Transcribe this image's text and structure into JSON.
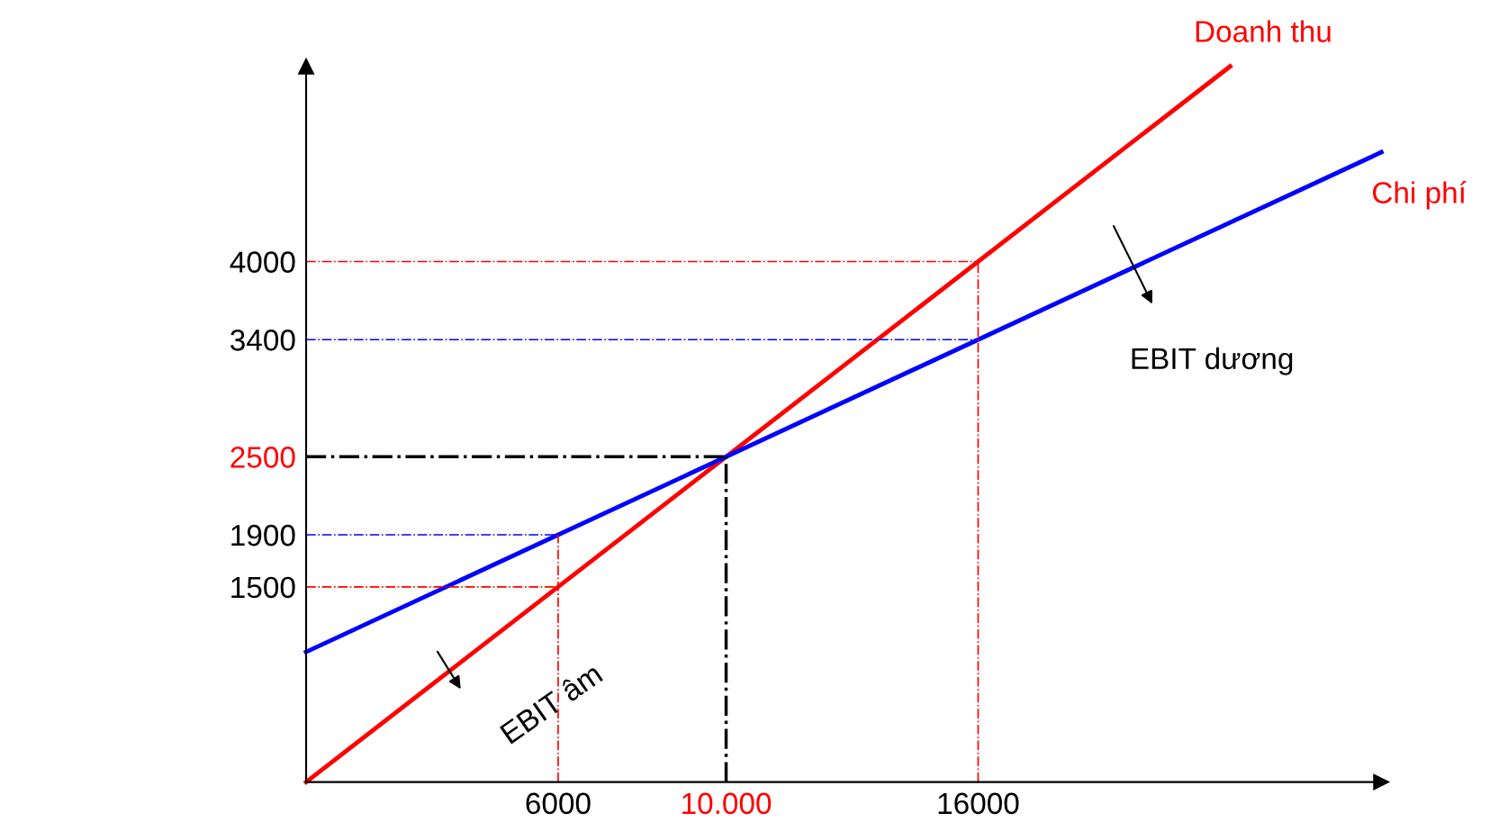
{
  "chart_data": {
    "type": "line",
    "xlim": [
      0,
      25600
    ],
    "ylim": [
      0,
      5500
    ],
    "xticks": [
      {
        "value": 6000,
        "label": "6000"
      },
      {
        "value": 10000,
        "label": "10.000"
      },
      {
        "value": 16000,
        "label": "16000"
      }
    ],
    "yticks": [
      1500,
      1900,
      2500,
      3400,
      4000
    ],
    "grid": false,
    "legend": false,
    "marker": "none",
    "series": [
      {
        "name": "Doanh thu",
        "color": "#ff0000",
        "x": [
          0,
          22000
        ],
        "values": [
          0,
          5500
        ],
        "line_style": "solid"
      },
      {
        "name": "Chi phí",
        "color": "#0000ff",
        "x": [
          0,
          25600
        ],
        "values": [
          1000,
          4840
        ],
        "line_style": "solid"
      },
      {
        "color": "#ff0000",
        "x": [
          0,
          16000
        ],
        "values": [
          4000,
          4000
        ],
        "line_style": "dashdot"
      },
      {
        "color": "#0000ff",
        "x": [
          0,
          16000
        ],
        "values": [
          3400,
          3400
        ],
        "line_style": "dashdot"
      },
      {
        "color": "#000000",
        "x": [
          0,
          10000
        ],
        "values": [
          2500,
          2500
        ],
        "line_style": "dashdot"
      },
      {
        "color": "#0000ff",
        "x": [
          0,
          6000
        ],
        "values": [
          1900,
          1900
        ],
        "line_style": "dashdot"
      },
      {
        "color": "#ff0000",
        "x": [
          0,
          6000
        ],
        "values": [
          1500,
          1500
        ],
        "line_style": "dashdot"
      },
      {
        "color": "#ff0000",
        "x": [
          6000,
          6000
        ],
        "values": [
          0,
          1900
        ],
        "line_style": "dashdot"
      },
      {
        "color": "#000000",
        "x": [
          10000,
          10000
        ],
        "values": [
          0,
          2500
        ],
        "line_style": "dashdot"
      },
      {
        "color": "#ff0000",
        "x": [
          16000,
          16000
        ],
        "values": [
          0,
          4000
        ],
        "line_style": "dashdot"
      }
    ],
    "annotations": [
      "EBIT dương",
      "EBIT âm"
    ]
  }
}
